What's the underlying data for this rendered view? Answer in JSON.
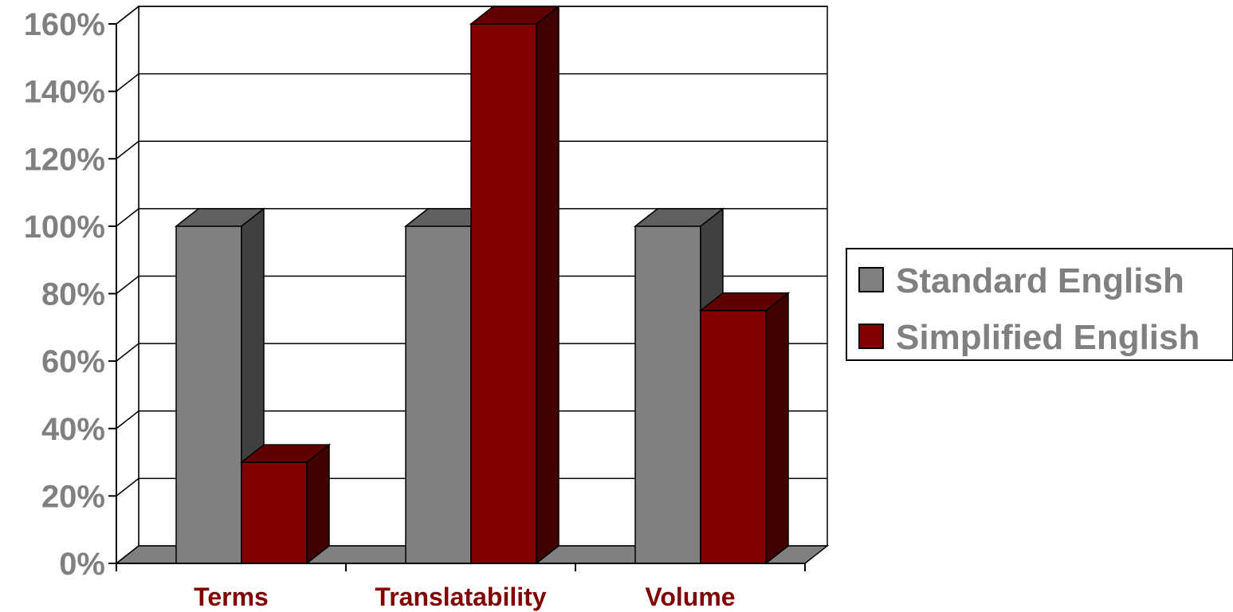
{
  "chart_data": {
    "type": "bar",
    "title": "",
    "xlabel": "",
    "ylabel": "",
    "categories": [
      "Terms",
      "Translatability",
      "Volume"
    ],
    "series": [
      {
        "name": "Standard English",
        "values": [
          100,
          100,
          100
        ],
        "color": "#808080",
        "side_color": "#404040",
        "top_color": "#606060"
      },
      {
        "name": "Simplified English",
        "values": [
          30,
          160,
          75
        ],
        "color": "#800000",
        "side_color": "#400000",
        "top_color": "#600000"
      }
    ],
    "ylim": [
      0,
      160
    ],
    "y_ticks": [
      "0%",
      "20%",
      "40%",
      "60%",
      "80%",
      "100%",
      "120%",
      "140%",
      "160%"
    ],
    "y_tick_values": [
      0,
      20,
      40,
      60,
      80,
      100,
      120,
      140,
      160
    ],
    "grid": true,
    "legend_position": "right",
    "style": "3d-clustered-column",
    "tick_label_color": "#808080",
    "category_label_color": "#800000",
    "floor_color": "#808080"
  }
}
